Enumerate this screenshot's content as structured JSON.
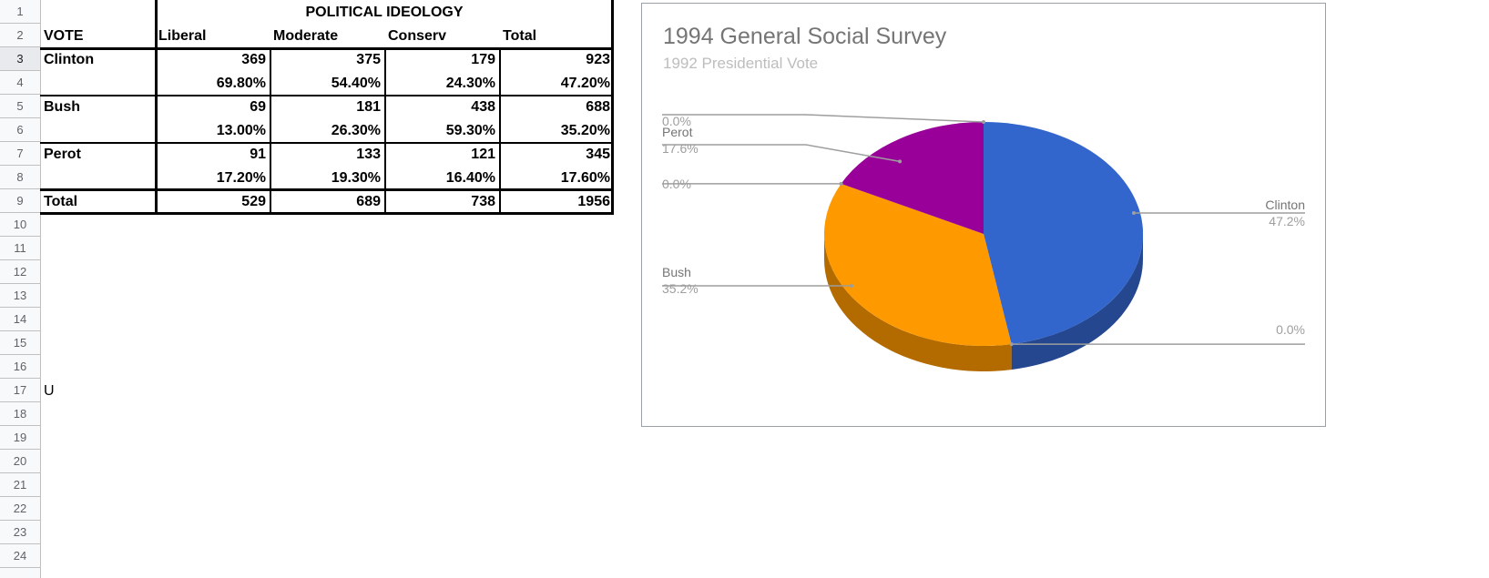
{
  "rows": [
    "1",
    "2",
    "3",
    "4",
    "5",
    "6",
    "7",
    "8",
    "9",
    "10",
    "11",
    "12",
    "13",
    "14",
    "15",
    "16",
    "17",
    "18",
    "19",
    "20",
    "21",
    "22",
    "23",
    "24"
  ],
  "table": {
    "group_header": "POLITICAL IDEOLOGY",
    "vote_header": "VOTE",
    "columns": [
      "Liberal",
      "Moderate",
      "Conserv",
      "Total"
    ],
    "candidates": [
      {
        "name": "Clinton",
        "counts": [
          "369",
          "375",
          "179",
          "923"
        ],
        "percents": [
          "69.80%",
          "54.40%",
          "24.30%",
          "47.20%"
        ]
      },
      {
        "name": "Bush",
        "counts": [
          "69",
          "181",
          "438",
          "688"
        ],
        "percents": [
          "13.00%",
          "26.30%",
          "59.30%",
          "35.20%"
        ]
      },
      {
        "name": "Perot",
        "counts": [
          "91",
          "133",
          "121",
          "345"
        ],
        "percents": [
          "17.20%",
          "19.30%",
          "16.40%",
          "17.60%"
        ]
      }
    ],
    "total_label": "Total",
    "totals": [
      "529",
      "689",
      "738",
      "1956"
    ]
  },
  "stray_cell": "U",
  "chart_data": {
    "type": "pie",
    "title": "1994 General Social Survey",
    "subtitle": "1992 Presidential Vote",
    "slices": [
      {
        "label": "Clinton",
        "value": 47.2,
        "display": "47.2%",
        "color": "#3366cc"
      },
      {
        "label": "",
        "value": 0.0,
        "display": "0.0%",
        "color": "#dc3912"
      },
      {
        "label": "Bush",
        "value": 35.2,
        "display": "35.2%",
        "color": "#ff9900"
      },
      {
        "label": "",
        "value": 0.0,
        "display": "0.0%",
        "color": "#109618"
      },
      {
        "label": "Perot",
        "value": 17.6,
        "display": "17.6%",
        "color": "#990099"
      },
      {
        "label": "",
        "value": 0.0,
        "display": "0.0%",
        "color": "#0099c6"
      }
    ],
    "legend": "labeled",
    "is3d": true
  }
}
